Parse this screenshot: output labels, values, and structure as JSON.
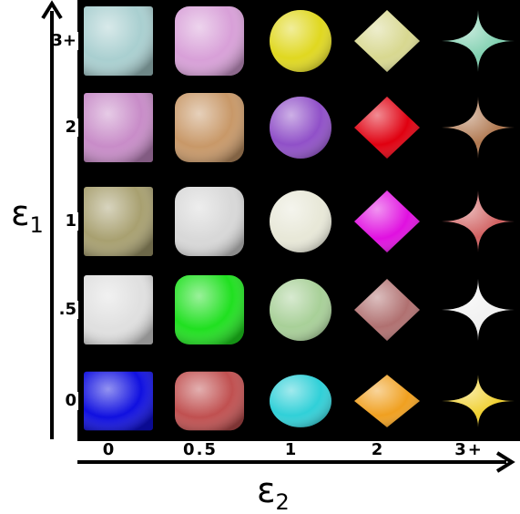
{
  "axes": {
    "y_label": "ε",
    "y_subscript": "1",
    "x_label": "ε",
    "x_subscript": "2"
  },
  "rows": [
    "3+",
    "2",
    "1",
    ".5",
    "0"
  ],
  "columns": [
    "0",
    "0.5",
    "1",
    "2",
    "3+"
  ]
}
